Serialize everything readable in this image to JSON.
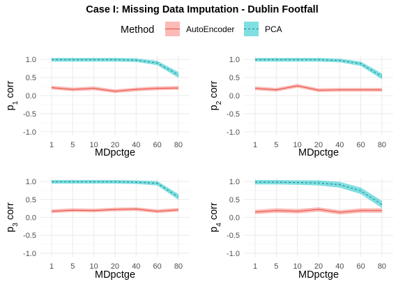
{
  "title": "Case I: Missing Data Imputation - Dublin Footfall",
  "legend": {
    "title": "Method",
    "entries": [
      {
        "label": "AutoEncoder",
        "fill": "#F8766D",
        "line": "#E8483F",
        "dash": false
      },
      {
        "label": "PCA",
        "fill": "#00BFC4",
        "line": "#1B7F82",
        "dash": true
      }
    ]
  },
  "chart_data": [
    {
      "type": "line",
      "panel": "p1",
      "ylabel_main": "p",
      "ylabel_sub": "1",
      "ylabel_tail": " corr",
      "xlabel": "MDpctge",
      "categories": [
        "1",
        "5",
        "10",
        "20",
        "40",
        "60",
        "80"
      ],
      "ylim": [
        -1.0,
        1.0
      ],
      "yticks": [
        "1.0",
        "0.5",
        "0.0",
        "-0.5",
        "-1.0"
      ],
      "series": [
        {
          "name": "AutoEncoder",
          "values": [
            0.22,
            0.17,
            0.2,
            0.12,
            0.17,
            0.2,
            0.21
          ],
          "band": [
            0.05,
            0.05,
            0.05,
            0.05,
            0.05,
            0.05,
            0.05
          ]
        },
        {
          "name": "PCA",
          "values": [
            0.99,
            0.99,
            0.99,
            0.99,
            0.98,
            0.9,
            0.57
          ],
          "band": [
            0.05,
            0.05,
            0.05,
            0.05,
            0.05,
            0.06,
            0.08
          ]
        }
      ]
    },
    {
      "type": "line",
      "panel": "p2",
      "ylabel_main": "p",
      "ylabel_sub": "2",
      "ylabel_tail": " corr",
      "xlabel": "MDpctge",
      "categories": [
        "1",
        "5",
        "10",
        "20",
        "40",
        "60",
        "80"
      ],
      "ylim": [
        -1.0,
        1.0
      ],
      "yticks": [
        "1.0",
        "0.5",
        "0.0",
        "-0.5",
        "-1.0"
      ],
      "series": [
        {
          "name": "AutoEncoder",
          "values": [
            0.2,
            0.16,
            0.27,
            0.15,
            0.16,
            0.16,
            0.16
          ],
          "band": [
            0.05,
            0.05,
            0.05,
            0.05,
            0.05,
            0.05,
            0.05
          ]
        },
        {
          "name": "PCA",
          "values": [
            0.99,
            0.99,
            0.99,
            0.99,
            0.97,
            0.88,
            0.53
          ],
          "band": [
            0.05,
            0.05,
            0.05,
            0.05,
            0.05,
            0.06,
            0.08
          ]
        }
      ]
    },
    {
      "type": "line",
      "panel": "p3",
      "ylabel_main": "p",
      "ylabel_sub": "3",
      "ylabel_tail": " corr",
      "xlabel": "MDpctge",
      "categories": [
        "1",
        "5",
        "10",
        "20",
        "40",
        "60",
        "80"
      ],
      "ylim": [
        -1.0,
        1.0
      ],
      "yticks": [
        "1.0",
        "0.5",
        "0.0",
        "-0.5",
        "-1.0"
      ],
      "series": [
        {
          "name": "AutoEncoder",
          "values": [
            0.17,
            0.2,
            0.19,
            0.22,
            0.23,
            0.17,
            0.21
          ],
          "band": [
            0.05,
            0.05,
            0.05,
            0.05,
            0.05,
            0.05,
            0.05
          ]
        },
        {
          "name": "PCA",
          "values": [
            0.99,
            0.99,
            0.99,
            0.99,
            0.98,
            0.95,
            0.57
          ],
          "band": [
            0.05,
            0.05,
            0.05,
            0.05,
            0.05,
            0.06,
            0.08
          ]
        }
      ]
    },
    {
      "type": "line",
      "panel": "p4",
      "ylabel_main": "p",
      "ylabel_sub": "4",
      "ylabel_tail": " corr",
      "xlabel": "MDpctge",
      "categories": [
        "1",
        "5",
        "10",
        "20",
        "40",
        "60",
        "80"
      ],
      "ylim": [
        -1.0,
        1.0
      ],
      "yticks": [
        "1.0",
        "0.5",
        "0.0",
        "-0.5",
        "-1.0"
      ],
      "series": [
        {
          "name": "AutoEncoder",
          "values": [
            0.15,
            0.19,
            0.17,
            0.22,
            0.14,
            0.19,
            0.19
          ],
          "band": [
            0.06,
            0.06,
            0.06,
            0.06,
            0.06,
            0.06,
            0.06
          ]
        },
        {
          "name": "PCA",
          "values": [
            0.98,
            0.98,
            0.97,
            0.96,
            0.91,
            0.74,
            0.36
          ],
          "band": [
            0.06,
            0.06,
            0.06,
            0.07,
            0.08,
            0.09,
            0.1
          ]
        }
      ]
    }
  ]
}
